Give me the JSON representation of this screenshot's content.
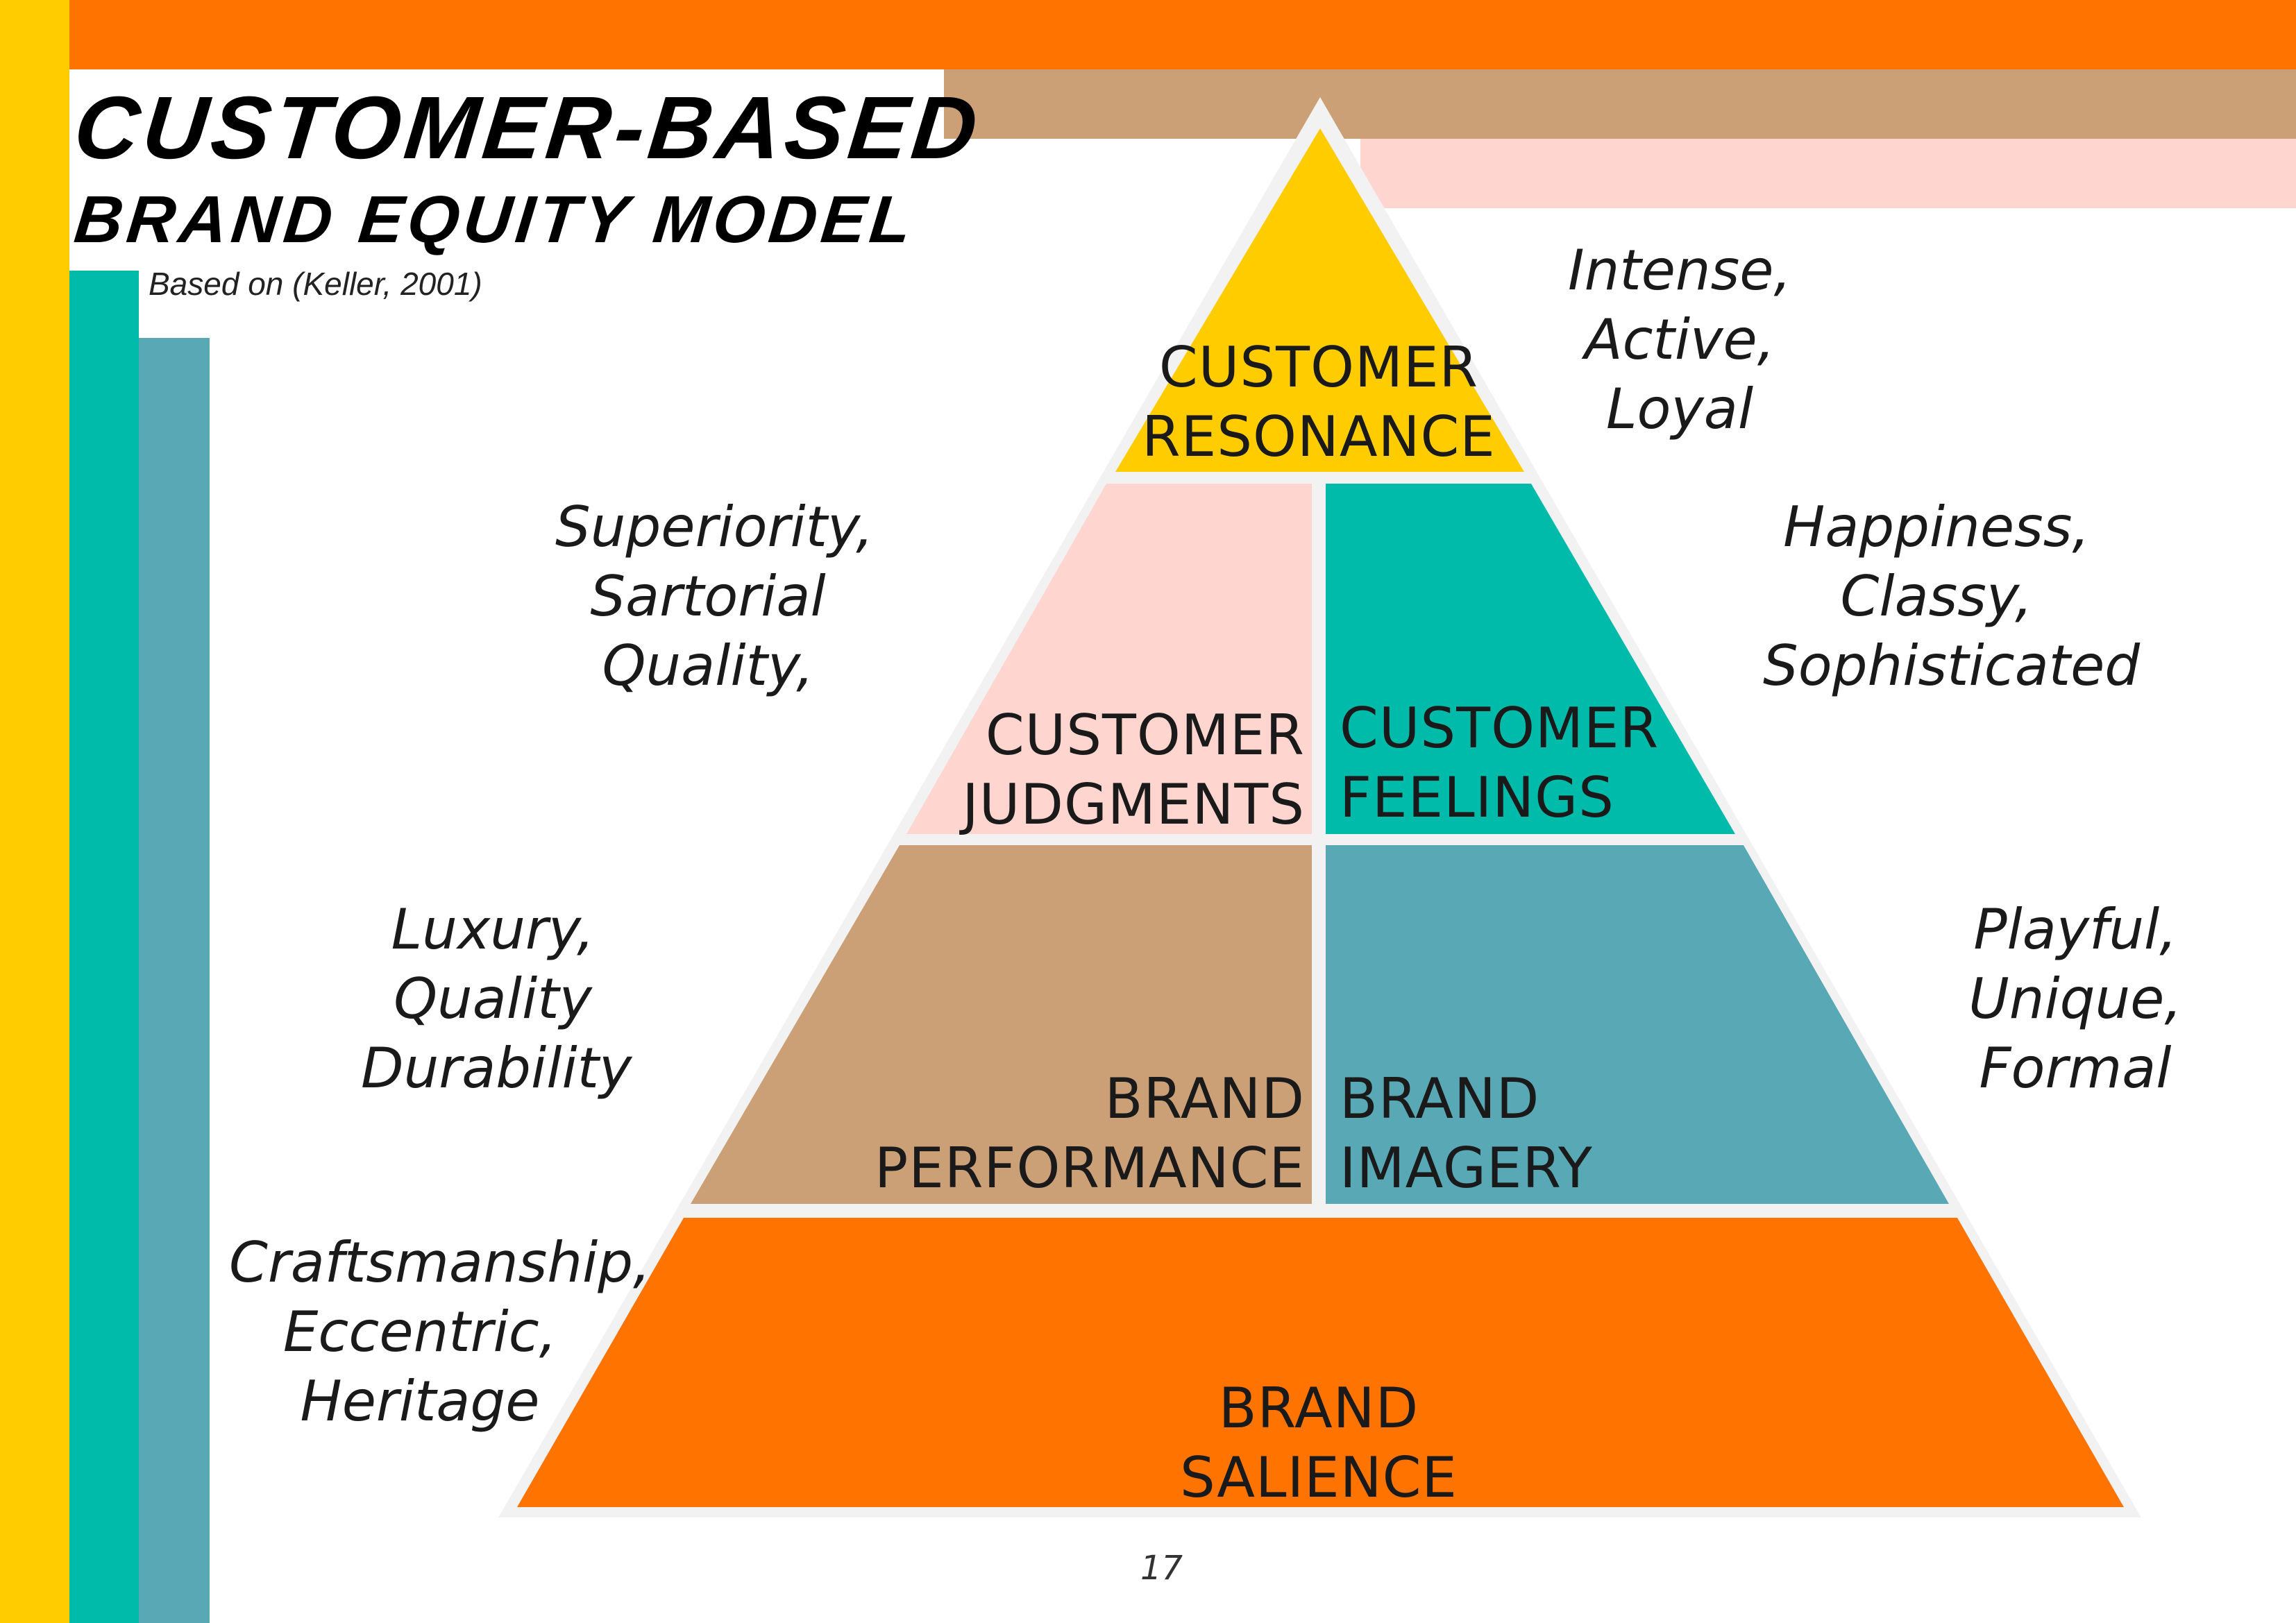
{
  "title": {
    "line1": "Customer-Based",
    "line2": "Brand Equity Model",
    "source": "Based on (Keller, 2001)"
  },
  "colors": {
    "orange": "#FF7300",
    "yellow": "#FFCC00",
    "teal": "#00BBAA",
    "steel_teal": "#58A8B5",
    "tan": "#CCA077",
    "pink": "#FFD5D0"
  },
  "pyramid": {
    "resonance": {
      "line1": "CUSTOMER",
      "line2": "RESONANCE"
    },
    "judgments": {
      "line1": "CUSTOMER",
      "line2": "JUDGMENTS"
    },
    "feelings": {
      "line1": "CUSTOMER",
      "line2": "FEELINGS"
    },
    "performance": {
      "line1": "BRAND",
      "line2": "PERFORMANCE"
    },
    "imagery": {
      "line1": "BRAND",
      "line2": "IMAGERY"
    },
    "salience": {
      "line1": "BRAND",
      "line2": "SALIENCE"
    }
  },
  "descriptors": {
    "resonance": [
      "Intense,",
      "Active,",
      "Loyal"
    ],
    "judgments": [
      "Superiority,",
      "Sartorial",
      "Quality,"
    ],
    "feelings": [
      "Happiness,",
      "Classy,",
      "Sophisticated"
    ],
    "performance": [
      "Luxury,",
      "Quality",
      "Durability"
    ],
    "imagery": [
      "Playful,",
      "Unique,",
      "Formal"
    ],
    "salience": [
      "Craftsmanship,",
      "Eccentric,",
      "Heritage"
    ]
  },
  "page_number": "17"
}
